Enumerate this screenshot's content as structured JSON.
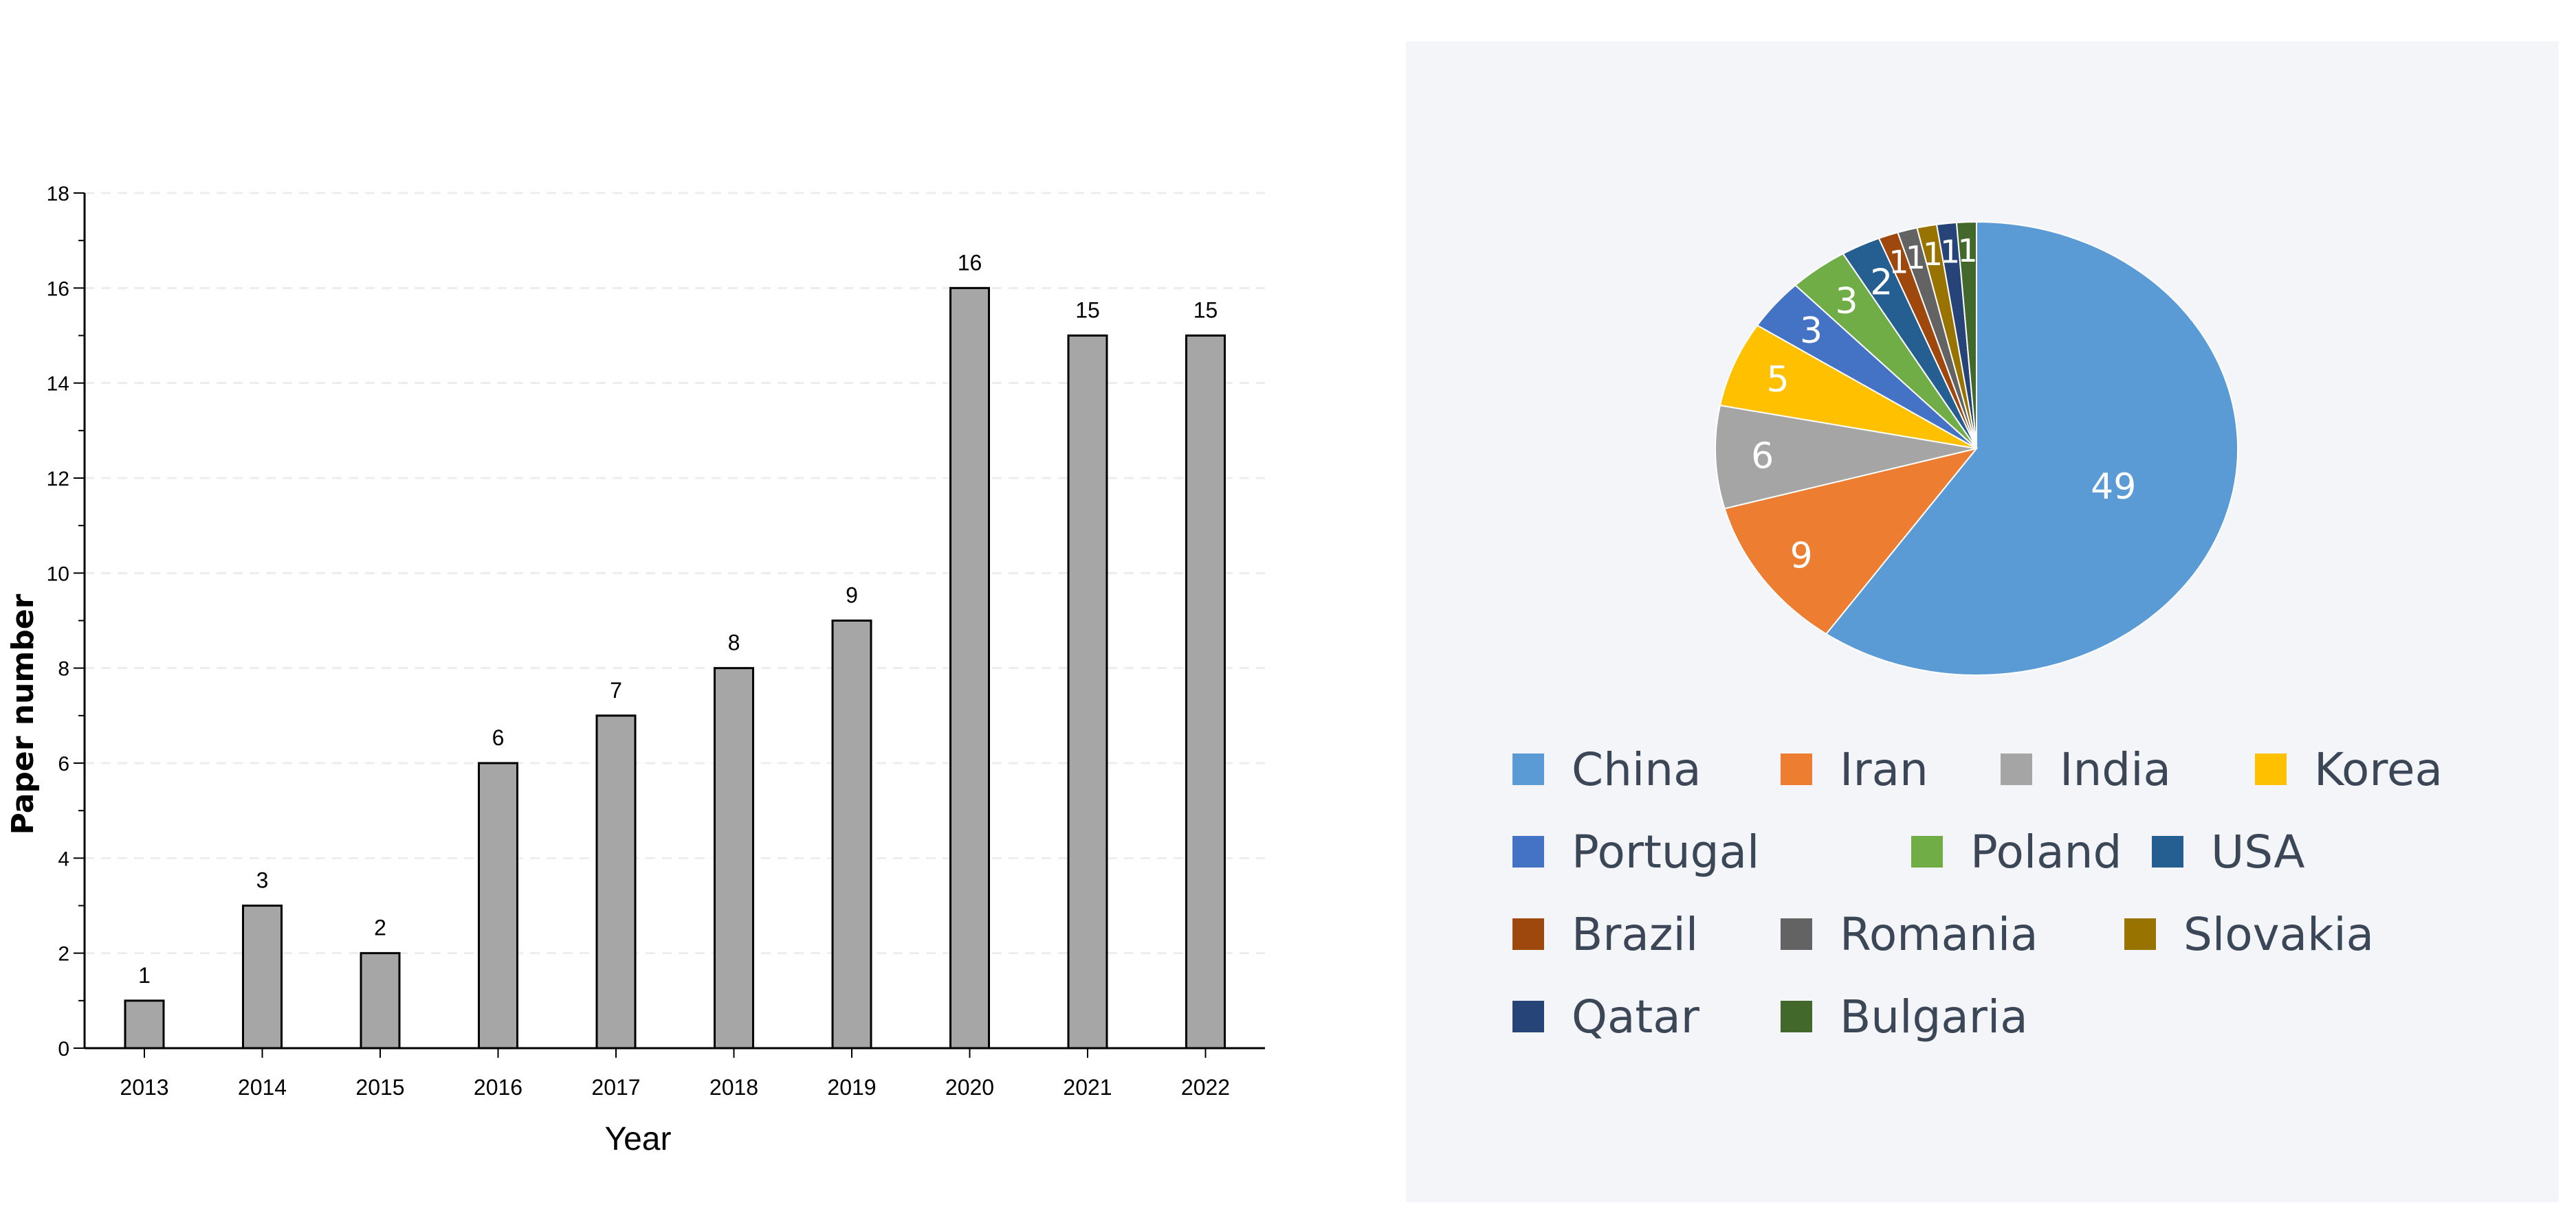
{
  "chart_data": [
    {
      "type": "bar",
      "title": "",
      "xlabel": "Year",
      "ylabel": "Paper number",
      "ylim": [
        0,
        18
      ],
      "yticks": [
        0,
        2,
        4,
        6,
        8,
        10,
        12,
        14,
        16,
        18
      ],
      "grid": true,
      "categories": [
        "2013",
        "2014",
        "2015",
        "2016",
        "2017",
        "2018",
        "2019",
        "2020",
        "2021",
        "2022"
      ],
      "values": [
        1,
        3,
        2,
        6,
        7,
        8,
        9,
        16,
        15,
        15
      ],
      "bar_color": "#a6a6a6"
    },
    {
      "type": "pie",
      "title": "",
      "legend_position": "bottom",
      "labels": [
        "China",
        "Iran",
        "India",
        "Korea",
        "Portugal",
        "Poland",
        "USA",
        "Brazil",
        "Romania",
        "Slovakia",
        "Qatar",
        "Bulgaria"
      ],
      "values": [
        49,
        9,
        6,
        5,
        3,
        3,
        2,
        1,
        1,
        1,
        1,
        1
      ],
      "colors": [
        "#5b9bd5",
        "#ed7d31",
        "#a5a5a5",
        "#ffc000",
        "#4472c4",
        "#70ad47",
        "#255e91",
        "#9e480e",
        "#636363",
        "#997300",
        "#264478",
        "#43682b"
      ]
    }
  ]
}
